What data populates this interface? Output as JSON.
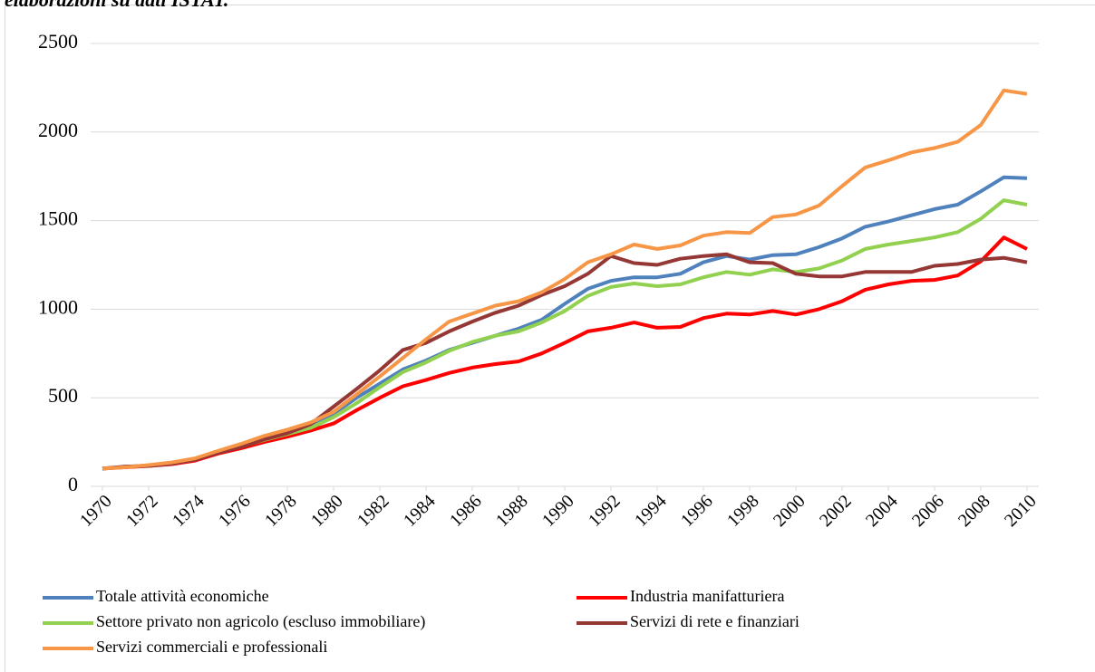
{
  "chart_data": {
    "type": "line",
    "title": "elaborazioni su dati ISTAT.",
    "x": [
      1970,
      1971,
      1972,
      1973,
      1974,
      1975,
      1976,
      1977,
      1978,
      1979,
      1980,
      1981,
      1982,
      1983,
      1984,
      1985,
      1986,
      1987,
      1988,
      1989,
      1990,
      1991,
      1992,
      1993,
      1994,
      1995,
      1996,
      1997,
      1998,
      1999,
      2000,
      2001,
      2002,
      2003,
      2004,
      2005,
      2006,
      2007,
      2008,
      2009,
      2010
    ],
    "xlim": [
      1970,
      2010
    ],
    "xticks": [
      1970,
      1972,
      1974,
      1976,
      1978,
      1980,
      1982,
      1984,
      1986,
      1988,
      1990,
      1992,
      1994,
      1996,
      1998,
      2000,
      2002,
      2004,
      2006,
      2008,
      2010
    ],
    "ylim": [
      0,
      2500
    ],
    "yticks": [
      0,
      500,
      1000,
      1500,
      2000,
      2500
    ],
    "grid": true,
    "legend": "bottom",
    "series": [
      {
        "name": "Totale attività economiche",
        "color": "#4f81bd",
        "values": [
          100,
          110,
          118,
          130,
          152,
          190,
          220,
          258,
          290,
          330,
          410,
          500,
          580,
          660,
          710,
          770,
          810,
          850,
          890,
          940,
          1030,
          1115,
          1160,
          1180,
          1180,
          1200,
          1265,
          1300,
          1280,
          1305,
          1310,
          1350,
          1400,
          1465,
          1495,
          1530,
          1565,
          1590,
          1665,
          1745,
          1740
        ]
      },
      {
        "name": "Industria manifatturiera",
        "color": "#ff0000",
        "values": [
          100,
          108,
          115,
          125,
          145,
          185,
          215,
          250,
          280,
          315,
          355,
          430,
          500,
          565,
          600,
          640,
          670,
          690,
          705,
          750,
          810,
          875,
          895,
          925,
          895,
          900,
          950,
          975,
          970,
          990,
          970,
          1000,
          1045,
          1110,
          1140,
          1160,
          1165,
          1190,
          1270,
          1405,
          1340
        ]
      },
      {
        "name": "Settore privato non agricolo (escluso immobiliare)",
        "color": "#92d050",
        "values": [
          100,
          110,
          118,
          130,
          155,
          195,
          225,
          262,
          295,
          330,
          390,
          470,
          560,
          645,
          700,
          765,
          815,
          850,
          875,
          925,
          990,
          1075,
          1125,
          1145,
          1130,
          1140,
          1180,
          1210,
          1195,
          1225,
          1210,
          1230,
          1275,
          1340,
          1365,
          1385,
          1405,
          1435,
          1510,
          1615,
          1590
        ]
      },
      {
        "name": "Servizi di rete e finanziari",
        "color": "#953735",
        "values": [
          100,
          112,
          115,
          128,
          150,
          190,
          222,
          265,
          300,
          350,
          450,
          550,
          655,
          770,
          810,
          875,
          930,
          980,
          1020,
          1080,
          1130,
          1200,
          1300,
          1260,
          1250,
          1285,
          1300,
          1310,
          1265,
          1260,
          1200,
          1185,
          1185,
          1210,
          1210,
          1210,
          1245,
          1255,
          1280,
          1290,
          1265
        ]
      },
      {
        "name": "Servizi commerciali e professionali",
        "color": "#f79646",
        "values": [
          100,
          108,
          120,
          135,
          158,
          200,
          240,
          285,
          320,
          360,
          420,
          520,
          620,
          725,
          830,
          930,
          975,
          1020,
          1045,
          1095,
          1170,
          1265,
          1310,
          1365,
          1340,
          1360,
          1415,
          1435,
          1430,
          1520,
          1535,
          1585,
          1695,
          1800,
          1840,
          1885,
          1910,
          1945,
          2040,
          2235,
          2215
        ]
      }
    ]
  }
}
